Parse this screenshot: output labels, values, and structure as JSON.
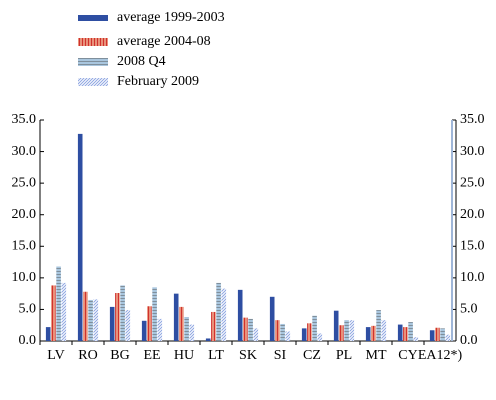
{
  "chart_data": {
    "type": "bar",
    "categories": [
      "LV",
      "RO",
      "BG",
      "EE",
      "HU",
      "LT",
      "SK",
      "SI",
      "CZ",
      "PL",
      "MT",
      "CY",
      "EA12*)"
    ],
    "series": [
      {
        "name": "average 1999-2003",
        "color": "#2e4ea2",
        "pattern": "solid",
        "values": [
          2.2,
          32.8,
          5.4,
          3.2,
          7.5,
          0.4,
          8.1,
          7.0,
          2.0,
          4.8,
          2.2,
          2.6,
          1.7
        ]
      },
      {
        "name": "average 2004-08",
        "color": "#e8917a",
        "pattern": "vertical",
        "values": [
          8.8,
          7.8,
          7.6,
          5.5,
          5.4,
          4.6,
          3.7,
          3.3,
          2.8,
          2.5,
          2.4,
          2.2,
          2.1
        ]
      },
      {
        "name": "2008 Q4",
        "color": "#a9c6de",
        "pattern": "horizontal",
        "values": [
          11.8,
          6.5,
          8.8,
          8.5,
          3.8,
          9.2,
          3.5,
          2.7,
          4.0,
          3.3,
          4.9,
          3.0,
          2.0
        ]
      },
      {
        "name": "February 2009",
        "color": "#8ea6e2",
        "pattern": "diagonal",
        "values": [
          9.2,
          6.6,
          4.9,
          3.5,
          2.6,
          8.3,
          2.0,
          1.5,
          1.2,
          3.3,
          3.3,
          0.6,
          1.0
        ]
      }
    ],
    "ylim": [
      0,
      35
    ],
    "yticks": [
      {
        "value": 0,
        "label": "0.0"
      },
      {
        "value": 5,
        "label": "5.0"
      },
      {
        "value": 10,
        "label": "10.0"
      },
      {
        "value": 15,
        "label": "15.0"
      },
      {
        "value": 20,
        "label": "20.0"
      },
      {
        "value": 25,
        "label": "25.0"
      },
      {
        "value": 30,
        "label": "30.0"
      },
      {
        "value": 35,
        "label": "35.0"
      }
    ],
    "grid": false
  }
}
